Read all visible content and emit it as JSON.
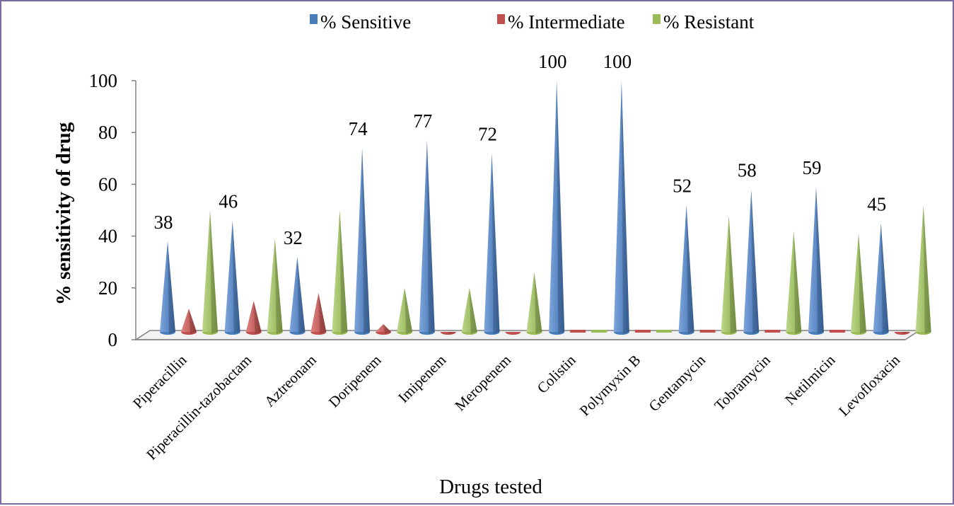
{
  "chart_data": {
    "type": "bar",
    "style": "3D cone/pyramid columns",
    "xlabel": "Drugs tested",
    "ylabel": "% sensitivity of drug",
    "ylim": [
      0,
      100
    ],
    "yticks": [
      0,
      20,
      40,
      60,
      80,
      100
    ],
    "legend_position": "top",
    "grid": false,
    "categories": [
      "Piperacillin",
      "Piperacillin-tazobactam",
      "Aztreonam",
      "Doripenem",
      "Imipenem",
      "Meropenem",
      "Colistin",
      "Polymyxin B",
      "Gentamycin",
      "Tobramycin",
      "Netilmicin",
      "Levofloxacin"
    ],
    "series": [
      {
        "name": "% Sensitive",
        "color": "#4a7ebb",
        "values": [
          38,
          46,
          32,
          74,
          77,
          72,
          100,
          100,
          52,
          58,
          59,
          45
        ],
        "data_labels": true
      },
      {
        "name": "% Intermediate",
        "color": "#c0504d",
        "values": [
          12,
          15,
          18,
          6,
          3,
          2,
          0,
          0,
          0,
          0,
          0,
          3
        ],
        "data_labels": false
      },
      {
        "name": "% Resistant",
        "color": "#9bbb59",
        "values": [
          50,
          39,
          50,
          20,
          20,
          26,
          0,
          0,
          48,
          42,
          41,
          52
        ],
        "data_labels": false
      }
    ]
  }
}
